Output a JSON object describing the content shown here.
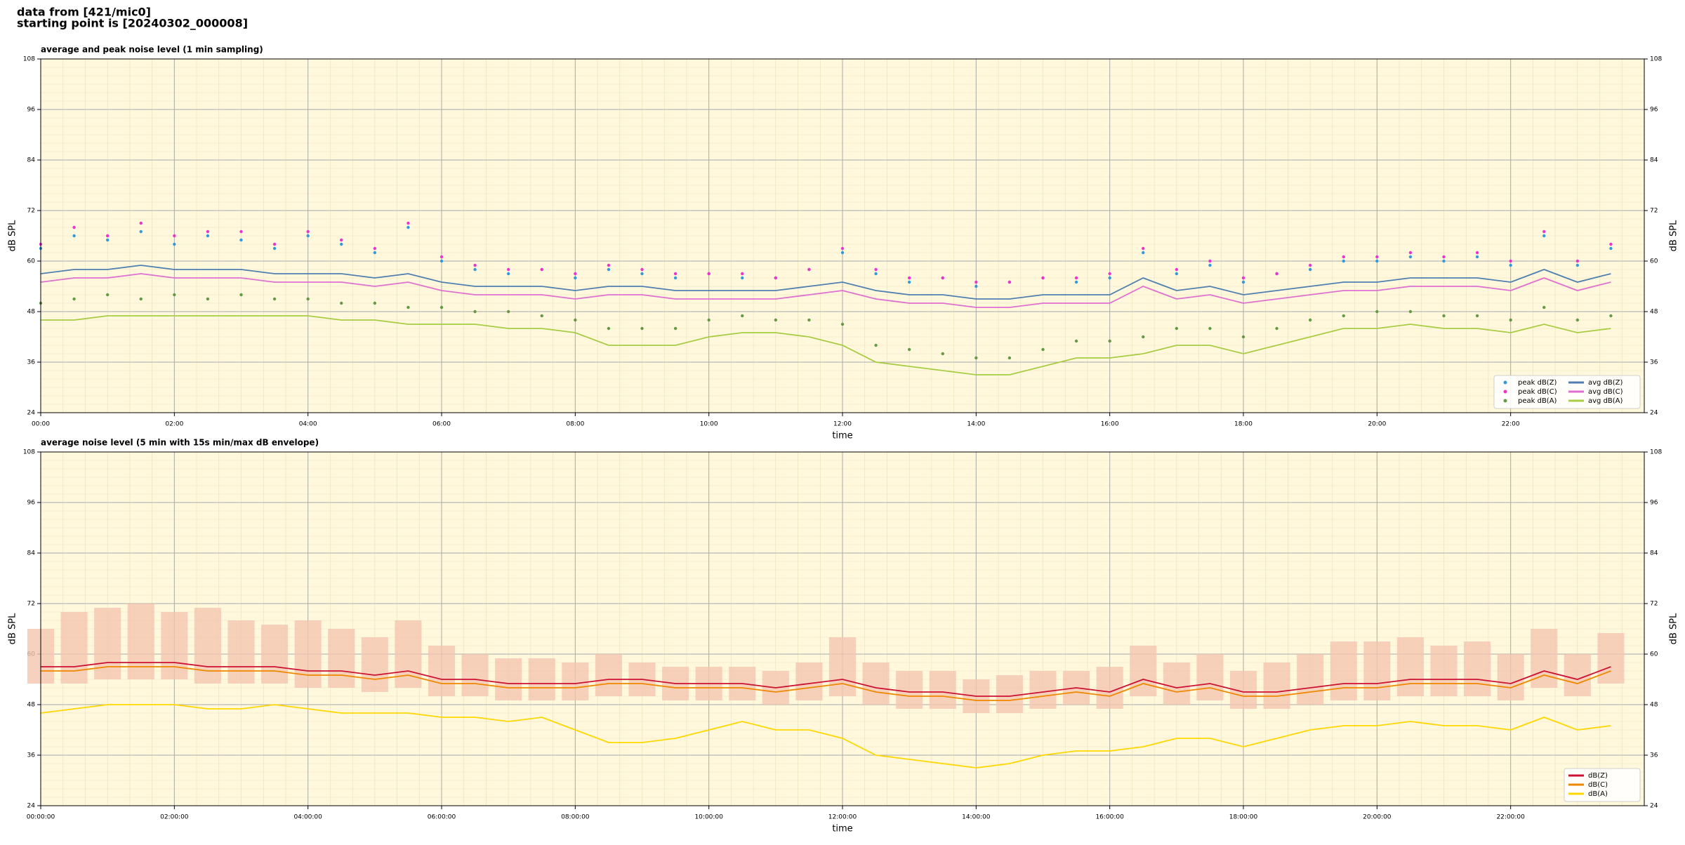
{
  "header": {
    "lines": [
      "data from [421/mic0]",
      "starting point is [20240302_000008]"
    ]
  },
  "chart_data": [
    {
      "type": "line",
      "title": "average and peak noise level (1 min sampling)",
      "xlabel": "time",
      "ylabel": "dB SPL",
      "background": "#fff8dc",
      "grid": true,
      "legend": "lower right",
      "legend_columns": 2,
      "x": [
        "00:00",
        "00:30",
        "01:00",
        "01:30",
        "02:00",
        "02:30",
        "03:00",
        "03:30",
        "04:00",
        "04:30",
        "05:00",
        "05:30",
        "06:00",
        "06:30",
        "07:00",
        "07:30",
        "08:00",
        "08:30",
        "09:00",
        "09:30",
        "10:00",
        "10:30",
        "11:00",
        "11:30",
        "12:00",
        "12:30",
        "13:00",
        "13:30",
        "14:00",
        "14:30",
        "15:00",
        "15:30",
        "16:00",
        "16:30",
        "17:00",
        "17:30",
        "18:00",
        "18:30",
        "19:00",
        "19:30",
        "20:00",
        "20:30",
        "21:00",
        "21:30",
        "22:00",
        "22:30",
        "23:00",
        "23:30"
      ],
      "xlim": [
        "00:00",
        "24:00"
      ],
      "xticks": [
        "00:00",
        "02:00",
        "04:00",
        "06:00",
        "08:00",
        "10:00",
        "12:00",
        "14:00",
        "16:00",
        "18:00",
        "20:00",
        "22:00"
      ],
      "ylim": [
        24,
        108
      ],
      "yticks": [
        24,
        36,
        48,
        60,
        72,
        84,
        96,
        108
      ],
      "series": [
        {
          "name": "peak dB(Z)",
          "style": "scatter",
          "color": "#3399dd",
          "values": [
            63,
            66,
            65,
            67,
            64,
            66,
            65,
            63,
            66,
            64,
            62,
            68,
            60,
            58,
            57,
            58,
            56,
            58,
            57,
            56,
            57,
            56,
            56,
            58,
            62,
            57,
            55,
            56,
            54,
            55,
            56,
            55,
            56,
            62,
            57,
            59,
            55,
            57,
            58,
            60,
            60,
            61,
            60,
            61,
            59,
            66,
            59,
            63
          ]
        },
        {
          "name": "peak dB(C)",
          "style": "scatter",
          "color": "#ee33cc",
          "values": [
            64,
            68,
            66,
            69,
            66,
            67,
            67,
            64,
            67,
            65,
            63,
            69,
            61,
            59,
            58,
            58,
            57,
            59,
            58,
            57,
            57,
            57,
            56,
            58,
            63,
            58,
            56,
            56,
            55,
            55,
            56,
            56,
            57,
            63,
            58,
            60,
            56,
            57,
            59,
            61,
            61,
            62,
            61,
            62,
            60,
            67,
            60,
            64
          ]
        },
        {
          "name": "peak dB(A)",
          "style": "scatter",
          "color": "#669944",
          "values": [
            50,
            51,
            52,
            51,
            52,
            51,
            52,
            51,
            51,
            50,
            50,
            49,
            49,
            48,
            48,
            47,
            46,
            44,
            44,
            44,
            46,
            47,
            46,
            46,
            45,
            40,
            39,
            38,
            37,
            37,
            39,
            41,
            41,
            42,
            44,
            44,
            42,
            44,
            46,
            47,
            48,
            48,
            47,
            47,
            46,
            49,
            46,
            47
          ]
        },
        {
          "name": "avg dB(Z)",
          "style": "line",
          "color": "#4f7fb0",
          "values": [
            57,
            58,
            58,
            59,
            58,
            58,
            58,
            57,
            57,
            57,
            56,
            57,
            55,
            54,
            54,
            54,
            53,
            54,
            54,
            53,
            53,
            53,
            53,
            54,
            55,
            53,
            52,
            52,
            51,
            51,
            52,
            52,
            52,
            56,
            53,
            54,
            52,
            53,
            54,
            55,
            55,
            56,
            56,
            56,
            55,
            58,
            55,
            57
          ]
        },
        {
          "name": "avg dB(C)",
          "style": "line",
          "color": "#e070d0",
          "values": [
            55,
            56,
            56,
            57,
            56,
            56,
            56,
            55,
            55,
            55,
            54,
            55,
            53,
            52,
            52,
            52,
            51,
            52,
            52,
            51,
            51,
            51,
            51,
            52,
            53,
            51,
            50,
            50,
            49,
            49,
            50,
            50,
            50,
            54,
            51,
            52,
            50,
            51,
            52,
            53,
            53,
            54,
            54,
            54,
            53,
            56,
            53,
            55
          ]
        },
        {
          "name": "avg dB(A)",
          "style": "line",
          "color": "#a8cc44",
          "values": [
            46,
            46,
            47,
            47,
            47,
            47,
            47,
            47,
            47,
            46,
            46,
            45,
            45,
            45,
            44,
            44,
            43,
            40,
            40,
            40,
            42,
            43,
            43,
            42,
            40,
            36,
            35,
            34,
            33,
            33,
            35,
            37,
            37,
            38,
            40,
            40,
            38,
            40,
            42,
            44,
            44,
            45,
            44,
            44,
            43,
            45,
            43,
            44
          ]
        }
      ]
    },
    {
      "type": "line",
      "title": "average noise level (5 min with 15s min/max dB envelope)",
      "xlabel": "time",
      "ylabel": "dB SPL",
      "background": "#fff8dc",
      "grid": true,
      "legend": "lower right",
      "legend_columns": 1,
      "x": [
        "00:00:00",
        "00:30:00",
        "01:00:00",
        "01:30:00",
        "02:00:00",
        "02:30:00",
        "03:00:00",
        "03:30:00",
        "04:00:00",
        "04:30:00",
        "05:00:00",
        "05:30:00",
        "06:00:00",
        "06:30:00",
        "07:00:00",
        "07:30:00",
        "08:00:00",
        "08:30:00",
        "09:00:00",
        "09:30:00",
        "10:00:00",
        "10:30:00",
        "11:00:00",
        "11:30:00",
        "12:00:00",
        "12:30:00",
        "13:00:00",
        "13:30:00",
        "14:00:00",
        "14:30:00",
        "15:00:00",
        "15:30:00",
        "16:00:00",
        "16:30:00",
        "17:00:00",
        "17:30:00",
        "18:00:00",
        "18:30:00",
        "19:00:00",
        "19:30:00",
        "20:00:00",
        "20:30:00",
        "21:00:00",
        "21:30:00",
        "22:00:00",
        "22:30:00",
        "23:00:00",
        "23:30:00"
      ],
      "xlim": [
        "00:00:00",
        "24:00:00"
      ],
      "xticks": [
        "00:00:00",
        "02:00:00",
        "04:00:00",
        "06:00:00",
        "08:00:00",
        "10:00:00",
        "12:00:00",
        "14:00:00",
        "16:00:00",
        "18:00:00",
        "20:00:00",
        "22:00:00"
      ],
      "ylim": [
        24,
        108
      ],
      "yticks": [
        24,
        36,
        48,
        60,
        72,
        84,
        96,
        108
      ],
      "envelope": {
        "color": "#f5c6b0",
        "max": [
          66,
          70,
          71,
          72,
          70,
          71,
          68,
          67,
          68,
          66,
          64,
          68,
          62,
          60,
          59,
          59,
          58,
          60,
          58,
          57,
          57,
          57,
          56,
          58,
          64,
          58,
          56,
          56,
          54,
          55,
          56,
          56,
          57,
          62,
          58,
          60,
          56,
          58,
          60,
          63,
          63,
          64,
          62,
          63,
          60,
          66,
          60,
          65
        ],
        "min": [
          53,
          53,
          54,
          54,
          54,
          53,
          53,
          53,
          52,
          52,
          51,
          52,
          50,
          50,
          49,
          49,
          49,
          50,
          50,
          49,
          49,
          49,
          48,
          49,
          50,
          48,
          47,
          47,
          46,
          46,
          47,
          48,
          47,
          50,
          48,
          49,
          47,
          47,
          48,
          49,
          49,
          50,
          50,
          50,
          49,
          52,
          50,
          53
        ]
      },
      "series": [
        {
          "name": "dB(Z)",
          "style": "line",
          "color": "#cc1133",
          "values": [
            57,
            57,
            58,
            58,
            58,
            57,
            57,
            57,
            56,
            56,
            55,
            56,
            54,
            54,
            53,
            53,
            53,
            54,
            54,
            53,
            53,
            53,
            52,
            53,
            54,
            52,
            51,
            51,
            50,
            50,
            51,
            52,
            51,
            54,
            52,
            53,
            51,
            51,
            52,
            53,
            53,
            54,
            54,
            54,
            53,
            56,
            54,
            57
          ]
        },
        {
          "name": "dB(C)",
          "style": "line",
          "color": "#ee8800",
          "values": [
            56,
            56,
            57,
            57,
            57,
            56,
            56,
            56,
            55,
            55,
            54,
            55,
            53,
            53,
            52,
            52,
            52,
            53,
            53,
            52,
            52,
            52,
            51,
            52,
            53,
            51,
            50,
            50,
            49,
            49,
            50,
            51,
            50,
            53,
            51,
            52,
            50,
            50,
            51,
            52,
            52,
            53,
            53,
            53,
            52,
            55,
            53,
            56
          ]
        },
        {
          "name": "dB(A)",
          "style": "line",
          "color": "#ffd700",
          "values": [
            46,
            47,
            48,
            48,
            48,
            47,
            47,
            48,
            47,
            46,
            46,
            46,
            45,
            45,
            44,
            45,
            42,
            39,
            39,
            40,
            42,
            44,
            42,
            42,
            40,
            36,
            35,
            34,
            33,
            34,
            36,
            37,
            37,
            38,
            40,
            40,
            38,
            40,
            42,
            43,
            43,
            44,
            43,
            43,
            42,
            45,
            42,
            43
          ]
        }
      ]
    }
  ]
}
